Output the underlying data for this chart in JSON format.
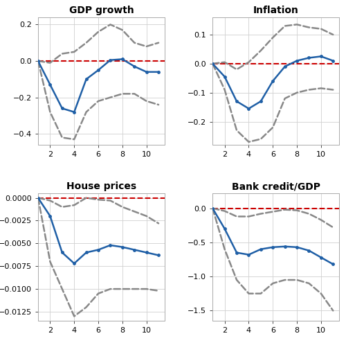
{
  "x": [
    1,
    2,
    3,
    4,
    5,
    6,
    7,
    8,
    9,
    10,
    11
  ],
  "gdp_mean": [
    0.0,
    -0.13,
    -0.26,
    -0.28,
    -0.1,
    -0.05,
    0.005,
    0.01,
    -0.03,
    -0.06,
    -0.06
  ],
  "gdp_upper": [
    0.0,
    -0.01,
    0.04,
    0.05,
    0.1,
    0.16,
    0.2,
    0.17,
    0.1,
    0.08,
    0.1
  ],
  "gdp_lower": [
    0.0,
    -0.28,
    -0.42,
    -0.43,
    -0.28,
    -0.22,
    -0.2,
    -0.18,
    -0.18,
    -0.22,
    -0.24
  ],
  "gdp_ylim": [
    -0.46,
    0.24
  ],
  "gdp_yticks": [
    -0.4,
    -0.2,
    0.0,
    0.2
  ],
  "inf_mean": [
    0.0,
    -0.045,
    -0.13,
    -0.155,
    -0.13,
    -0.06,
    -0.01,
    0.01,
    0.02,
    0.025,
    0.01
  ],
  "inf_upper": [
    0.0,
    0.005,
    -0.02,
    0.005,
    0.045,
    0.09,
    0.13,
    0.135,
    0.125,
    0.12,
    0.1
  ],
  "inf_lower": [
    0.0,
    -0.09,
    -0.23,
    -0.27,
    -0.26,
    -0.22,
    -0.12,
    -0.1,
    -0.09,
    -0.085,
    -0.09
  ],
  "inf_ylim": [
    -0.28,
    0.16
  ],
  "inf_yticks": [
    -0.2,
    -0.1,
    0.0,
    0.1
  ],
  "hp_mean": [
    0.0,
    -0.002,
    -0.006,
    -0.0072,
    -0.006,
    -0.0057,
    -0.0052,
    -0.0054,
    -0.0057,
    -0.006,
    -0.0063
  ],
  "hp_upper": [
    0.0,
    -0.0003,
    -0.001,
    -0.0008,
    0.0,
    -0.0002,
    -0.0003,
    -0.001,
    -0.0015,
    -0.002,
    -0.0028
  ],
  "hp_lower": [
    0.0,
    -0.007,
    -0.01,
    -0.013,
    -0.012,
    -0.0105,
    -0.01,
    -0.01,
    -0.01,
    -0.01,
    -0.0102
  ],
  "hp_ylim": [
    -0.0135,
    0.0005
  ],
  "hp_yticks": [
    -0.0125,
    -0.01,
    -0.0075,
    -0.005,
    -0.0025,
    0.0
  ],
  "bc_mean": [
    0.0,
    -0.3,
    -0.65,
    -0.68,
    -0.6,
    -0.57,
    -0.56,
    -0.57,
    -0.62,
    -0.72,
    -0.82
  ],
  "bc_upper": [
    0.0,
    -0.04,
    -0.12,
    -0.12,
    -0.08,
    -0.05,
    -0.02,
    -0.03,
    -0.08,
    -0.17,
    -0.28
  ],
  "bc_lower": [
    0.0,
    -0.6,
    -1.05,
    -1.25,
    -1.25,
    -1.1,
    -1.05,
    -1.05,
    -1.1,
    -1.25,
    -1.5
  ],
  "bc_ylim": [
    -1.65,
    0.22
  ],
  "bc_yticks": [
    -1.5,
    -1.0,
    -0.5,
    0.0
  ],
  "line_color": "#1f5fa6",
  "ci_color": "#888888",
  "ref_color": "#cc0000",
  "bg_color": "#ffffff",
  "grid_color": "#d0d0d0",
  "title_fontsize": 10,
  "tick_fontsize": 8,
  "linewidth": 1.8,
  "ci_linewidth": 1.8,
  "marker": "o",
  "markersize": 2.5
}
